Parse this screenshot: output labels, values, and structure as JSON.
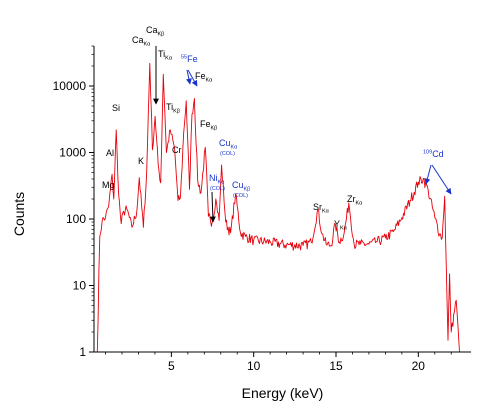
{
  "chart_data": {
    "type": "line",
    "title": "",
    "xlabel": "Energy (keV)",
    "ylabel": "Counts",
    "xlim": [
      0.3,
      23.2
    ],
    "ylim": [
      1,
      40000
    ],
    "yscale": "log",
    "grid": false,
    "legend": "none",
    "x_ticks": [
      5,
      10,
      15,
      20
    ],
    "y_ticks": [
      1,
      10,
      100,
      1000,
      10000
    ],
    "series": [
      {
        "color": "#e8000b",
        "x": [
          0.5,
          0.65,
          0.8,
          1.0,
          1.2,
          1.4,
          1.5,
          1.65,
          1.8,
          1.95,
          2.1,
          2.3,
          2.6,
          2.9,
          3.05,
          3.3,
          3.5,
          3.69,
          3.85,
          4.01,
          4.2,
          4.35,
          4.51,
          4.7,
          4.93,
          5.2,
          5.4,
          5.55,
          5.75,
          5.9,
          6.1,
          6.25,
          6.4,
          6.6,
          6.8,
          7.06,
          7.25,
          7.48,
          7.7,
          7.9,
          8.05,
          8.3,
          8.6,
          8.9,
          9.2,
          9.5,
          10.0,
          11.0,
          12.0,
          13.0,
          13.5,
          13.9,
          14.15,
          14.4,
          14.7,
          14.96,
          15.2,
          15.5,
          15.78,
          16.1,
          16.5,
          17.0,
          17.5,
          18.0,
          18.5,
          19.0,
          19.5,
          20.0,
          20.3,
          20.6,
          21.0,
          21.3,
          21.45,
          21.6,
          21.8,
          21.9,
          22.0,
          22.3,
          22.5
        ],
        "y": [
          1,
          55,
          95,
          105,
          160,
          470,
          200,
          2200,
          230,
          85,
          130,
          140,
          75,
          130,
          420,
          75,
          520,
          22000,
          1100,
          3500,
          650,
          350,
          15000,
          1000,
          2200,
          1100,
          190,
          210,
          2000,
          6000,
          280,
          3800,
          6500,
          380,
          250,
          1200,
          110,
          90,
          200,
          95,
          650,
          90,
          62,
          240,
          62,
          55,
          48,
          45,
          41,
          40,
          45,
          140,
          60,
          42,
          40,
          85,
          45,
          62,
          175,
          42,
          42,
          42,
          46,
          52,
          65,
          105,
          190,
          360,
          410,
          270,
          105,
          60,
          52,
          220,
          1.5,
          15,
          2,
          6,
          1
        ]
      }
    ],
    "annotations": [
      {
        "main": "Ca",
        "sub": "Kβ",
        "color": "black"
      },
      {
        "main": "Ca",
        "sub": "Kα",
        "color": "black"
      },
      {
        "main": "Ti",
        "sub": "Kα",
        "color": "black"
      },
      {
        "main": "Fe",
        "sup": "55",
        "color": "blue"
      },
      {
        "main": "Fe",
        "sub": "Kα",
        "color": "black"
      },
      {
        "main": "Si",
        "color": "black"
      },
      {
        "main": "Ti",
        "sub": "Kβ",
        "color": "black"
      },
      {
        "main": "Fe",
        "sub": "Kβ",
        "color": "black"
      },
      {
        "main": "Cr",
        "color": "black"
      },
      {
        "main": "K",
        "color": "black"
      },
      {
        "main": "Al",
        "color": "black"
      },
      {
        "main": "Mg",
        "color": "black"
      },
      {
        "main": "Cu",
        "sub": "Kα",
        "note": "(COL)",
        "color": "blue"
      },
      {
        "main": "Ni",
        "sub": "Kα",
        "note": "(COL)",
        "color": "blue"
      },
      {
        "main": "Cu",
        "sub": "Kβ",
        "note": "(COL)",
        "color": "blue"
      },
      {
        "main": "Cd",
        "sup": "109",
        "color": "blue"
      },
      {
        "main": "Sr",
        "sub": "Kα",
        "color": "black"
      },
      {
        "main": "Y",
        "sub": "Kα",
        "color": "black"
      },
      {
        "main": "Zr",
        "sub": "Kα",
        "color": "black"
      }
    ]
  }
}
